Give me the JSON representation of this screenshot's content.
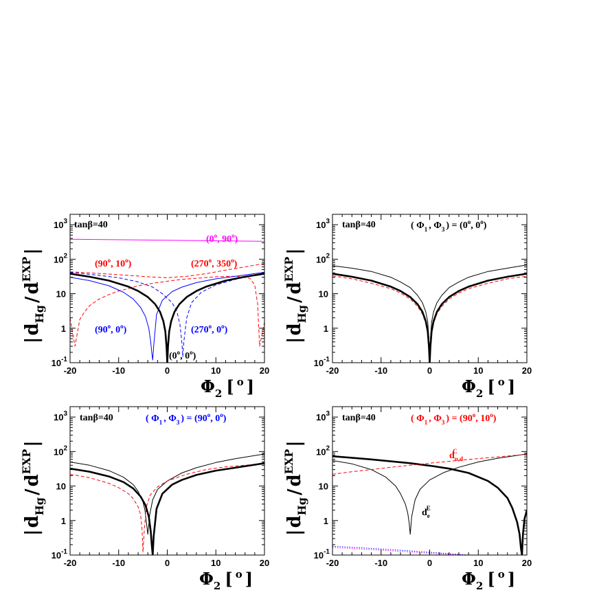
{
  "chart_data": [
    {
      "type": "line",
      "panel": "top-left",
      "xlabel": "Φ2 [ o ]",
      "ylabel": "|dHg / dEXP|",
      "xlim": [
        -20,
        20
      ],
      "ylim": [
        0.1,
        2000
      ],
      "yscale": "log",
      "xticks": [
        "-20",
        "-10",
        "0",
        "10",
        "20"
      ],
      "yticks": [
        "10 -1",
        "1",
        "10",
        "10 2",
        "10 3"
      ],
      "annotations": [
        "tanβ=40"
      ],
      "series": [
        {
          "name": "(0o, 90o)",
          "color": "#ff00ff",
          "dash": "solid",
          "width": 1,
          "x": [
            -20,
            20
          ],
          "y": [
            380,
            330
          ]
        },
        {
          "name": "(90o, 10o)",
          "color": "#ff0000",
          "dash": "dash",
          "width": 1,
          "x": [
            -20,
            -19,
            -18,
            -17,
            -16,
            -14,
            -12,
            -10,
            -8,
            -6,
            -4,
            -2,
            0,
            3,
            6,
            10,
            14,
            17,
            18,
            18.6,
            19,
            20
          ],
          "y": [
            2,
            0.3,
            1.8,
            3,
            4.5,
            7,
            9.5,
            12,
            14,
            17,
            19,
            21,
            23,
            26,
            28,
            31,
            32,
            28,
            18,
            5,
            0.3,
            1.5
          ]
        },
        {
          "name": "(270o, 350o)",
          "color": "#ff0000",
          "dash": "dash",
          "width": 1,
          "x": [
            -20,
            -16,
            -12,
            -8,
            -4,
            0,
            4,
            8,
            12,
            16,
            20
          ],
          "y": [
            43,
            40,
            37,
            34,
            31,
            29,
            32,
            38,
            48,
            60,
            75
          ]
        },
        {
          "name": "(90o, 0o)",
          "color": "#0000ff",
          "dash": "solid",
          "width": 1,
          "x": [
            -20,
            -16,
            -12,
            -9,
            -7,
            -5.5,
            -4.5,
            -3.8,
            -3.4,
            -3.2,
            -3,
            -2.8,
            -2.2,
            -1,
            1,
            3,
            6,
            10,
            14,
            20
          ],
          "y": [
            30,
            24,
            17,
            11,
            7,
            4,
            2.2,
            1,
            0.4,
            0.2,
            0.12,
            0.3,
            2.5,
            6.5,
            11.5,
            15.5,
            21,
            27,
            32,
            42
          ]
        },
        {
          "name": "(270o, 0o)",
          "color": "#0000ff",
          "dash": "dash",
          "width": 1,
          "x": [
            -20,
            -14,
            -10,
            -6,
            -3,
            -1,
            1,
            2,
            2.6,
            3,
            3.2,
            3.4,
            4,
            5,
            7,
            10,
            14,
            20
          ],
          "y": [
            42,
            34,
            29,
            22,
            15.5,
            10,
            5.5,
            3,
            1.3,
            0.4,
            0.15,
            0.4,
            2,
            5.5,
            11,
            18,
            26,
            40
          ]
        },
        {
          "name": "(0o, 0o)",
          "color": "#000000",
          "dash": "solid",
          "width": 2.6,
          "x": [
            -20,
            -16,
            -12,
            -8,
            -6,
            -4,
            -2.5,
            -1.5,
            -0.8,
            -0.4,
            -0.15,
            0,
            0.15,
            0.4,
            0.8,
            1.5,
            2.5,
            4,
            6,
            8,
            12,
            16,
            20
          ],
          "y": [
            38,
            31,
            24,
            16,
            12,
            8,
            5,
            3,
            1.6,
            0.8,
            0.3,
            0.1,
            0.3,
            0.8,
            1.6,
            3,
            5,
            8,
            12,
            16,
            24,
            31,
            38
          ]
        }
      ],
      "labels": [
        {
          "text": "(0o, 90o)",
          "color": "#ff00ff"
        },
        {
          "text": "(90o, 10o)",
          "color": "#ff0000"
        },
        {
          "text": "(270o, 350o)",
          "color": "#ff0000"
        },
        {
          "text": "(90o, 0o)",
          "color": "#0000ff"
        },
        {
          "text": "(270o, 0o)",
          "color": "#0000ff"
        },
        {
          "text": "(0o, 0o)",
          "color": "#000000"
        }
      ]
    },
    {
      "type": "line",
      "panel": "top-right",
      "xlabel": "Φ2 [ o ]",
      "ylabel": "|dHg / dEXP|",
      "xlim": [
        -20,
        20
      ],
      "ylim": [
        0.1,
        2000
      ],
      "yscale": "log",
      "xticks": [
        "-20",
        "-10",
        "0",
        "10",
        "20"
      ],
      "yticks": [
        "10 -1",
        "1",
        "10",
        "10 2",
        "10 3"
      ],
      "annotations": [
        "tanβ=40",
        "( Φ1 , Φ3 ) = (0o, 0o)"
      ],
      "series": [
        {
          "name": "thin",
          "color": "#000000",
          "dash": "solid",
          "width": 1,
          "x": [
            -20,
            -16,
            -12,
            -8,
            -6,
            -4,
            -2.5,
            -1.5,
            -0.8,
            -0.4,
            -0.15,
            0,
            0.15,
            0.4,
            0.8,
            1.5,
            2.5,
            4,
            6,
            8,
            12,
            16,
            20
          ],
          "y": [
            65,
            55,
            44,
            30,
            22,
            15,
            9,
            5.5,
            3,
            1.5,
            0.5,
            0.1,
            0.5,
            1.5,
            3,
            5.5,
            9,
            15,
            22,
            30,
            44,
            55,
            68
          ]
        },
        {
          "name": "dashed",
          "color": "#ff0000",
          "dash": "dash",
          "width": 1,
          "x": [
            -20,
            -16,
            -12,
            -8,
            -6,
            -4,
            -2.5,
            -1.5,
            -0.8,
            -0.4,
            -0.15,
            0,
            0.15,
            0.4,
            0.8,
            1.5,
            2.5,
            4,
            6,
            8,
            12,
            16,
            20
          ],
          "y": [
            33,
            27,
            20,
            14,
            10.5,
            7,
            4.3,
            2.6,
            1.4,
            0.7,
            0.25,
            0.1,
            0.25,
            0.7,
            1.4,
            2.6,
            4.3,
            7,
            10.5,
            14,
            20,
            27,
            32
          ]
        },
        {
          "name": "thick",
          "color": "#000000",
          "dash": "solid",
          "width": 2.6,
          "x": [
            -20,
            -16,
            -12,
            -8,
            -6,
            -4,
            -2.5,
            -1.5,
            -0.8,
            -0.4,
            -0.15,
            0,
            0.15,
            0.4,
            0.8,
            1.5,
            2.5,
            4,
            6,
            8,
            12,
            16,
            20
          ],
          "y": [
            38,
            31,
            24,
            16,
            12,
            8,
            5,
            3,
            1.6,
            0.8,
            0.3,
            0.1,
            0.3,
            0.8,
            1.6,
            3,
            5,
            8,
            12,
            16,
            24,
            31,
            38
          ]
        }
      ],
      "labels": []
    },
    {
      "type": "line",
      "panel": "bottom-left",
      "xlabel": "Φ2 [ o ]",
      "ylabel": "|dHg / dEXP|",
      "xlim": [
        -20,
        20
      ],
      "ylim": [
        0.1,
        2000
      ],
      "yscale": "log",
      "xticks": [
        "-20",
        "-10",
        "0",
        "10",
        "20"
      ],
      "yticks": [
        "10 -1",
        "1",
        "10",
        "10 2",
        "10 3"
      ],
      "annotations": [
        "tanβ=40",
        "( Φ1 , Φ3 ) = (90o, 0o)"
      ],
      "series": [
        {
          "name": "thin",
          "color": "#000000",
          "dash": "solid",
          "width": 1,
          "x": [
            -20,
            -16,
            -12,
            -9,
            -7,
            -6,
            -5,
            -4.6,
            -4.3,
            -4,
            -3.6,
            -3,
            -2,
            0,
            3,
            6,
            10,
            14,
            20
          ],
          "y": [
            50,
            40,
            28,
            18,
            11,
            7,
            3.5,
            2,
            0.9,
            0.4,
            1.5,
            4,
            8,
            14,
            24,
            34,
            48,
            62,
            85
          ]
        },
        {
          "name": "dashed",
          "color": "#ff0000",
          "dash": "dash",
          "width": 1,
          "x": [
            -20,
            -16,
            -12,
            -10,
            -8,
            -7,
            -6,
            -5.5,
            -5.2,
            -5,
            -4.7,
            -4.3,
            -3.5,
            -2,
            0,
            4,
            8,
            12,
            16,
            20
          ],
          "y": [
            22,
            17.5,
            12,
            9,
            6,
            4.3,
            2.5,
            1.5,
            0.6,
            0.12,
            0.6,
            2.5,
            5.5,
            9.5,
            14,
            22,
            30,
            36,
            40,
            44
          ]
        },
        {
          "name": "thick",
          "color": "#000000",
          "dash": "solid",
          "width": 2.6,
          "x": [
            -20,
            -16,
            -12,
            -9,
            -7,
            -5.5,
            -4.5,
            -3.8,
            -3.4,
            -3.2,
            -3,
            -2.8,
            -2.2,
            -1,
            1,
            3,
            6,
            10,
            14,
            20
          ],
          "y": [
            32,
            26,
            19,
            13,
            8.5,
            5,
            2.8,
            1.3,
            0.5,
            0.2,
            0.1,
            0.35,
            2.2,
            6,
            11,
            15,
            21,
            28,
            34,
            46
          ]
        }
      ],
      "labels": []
    },
    {
      "type": "line",
      "panel": "bottom-right",
      "xlabel": "Φ2 [ o ]",
      "ylabel": "|dHg / dEXP|",
      "xlim": [
        -20,
        20
      ],
      "ylim": [
        0.1,
        2000
      ],
      "yscale": "log",
      "xticks": [
        "-20",
        "-10",
        "0",
        "10",
        "20"
      ],
      "yticks": [
        "10 -1",
        "1",
        "10",
        "10 2",
        "10 3"
      ],
      "annotations": [
        "tanβ=40",
        "( Φ1 , Φ3 ) = (90o, 10o)"
      ],
      "series": [
        {
          "name": "thick",
          "color": "#000000",
          "dash": "solid",
          "width": 2.6,
          "x": [
            -20,
            -16,
            -12,
            -8,
            -4,
            0,
            4,
            8,
            12,
            14,
            16,
            17,
            18,
            18.5,
            18.8,
            19,
            19.2,
            19.5,
            20
          ],
          "y": [
            73,
            66,
            59,
            52,
            46,
            39,
            32,
            24,
            14,
            9,
            4.5,
            2.3,
            0.9,
            0.4,
            0.15,
            0.1,
            0.4,
            1.1,
            2
          ]
        },
        {
          "name": "d_e^E",
          "color": "#000000",
          "dash": "solid",
          "width": 1,
          "x": [
            -20,
            -16,
            -12,
            -9,
            -7,
            -6,
            -5,
            -4.5,
            -4.2,
            -4,
            -3.7,
            -3,
            -2,
            0,
            3,
            6,
            10,
            14,
            20
          ],
          "y": [
            55,
            44,
            30,
            18,
            10,
            6,
            3,
            1.6,
            0.8,
            0.4,
            1.3,
            4,
            8,
            15,
            25,
            35,
            50,
            64,
            85
          ]
        },
        {
          "name": "d_u,d^C",
          "color": "#ff0000",
          "dash": "dash",
          "width": 1,
          "x": [
            -20,
            -16,
            -12,
            -8,
            -4,
            0,
            4,
            8,
            12,
            16,
            20
          ],
          "y": [
            22,
            26,
            30,
            35,
            40,
            46,
            52,
            59,
            66,
            74,
            83
          ]
        },
        {
          "name": "dotted-blue",
          "color": "#0000ff",
          "dash": "dot",
          "width": 1,
          "x": [
            -20,
            -15,
            -10,
            -5,
            0,
            5,
            8
          ],
          "y": [
            0.18,
            0.165,
            0.15,
            0.135,
            0.12,
            0.107,
            0.1
          ]
        },
        {
          "name": "dotted-magenta",
          "color": "#ff00ff",
          "dash": "dot",
          "width": 1,
          "x": [
            -20,
            -15,
            -10,
            -5,
            0,
            5,
            7.5
          ],
          "y": [
            0.165,
            0.152,
            0.138,
            0.125,
            0.112,
            0.102,
            0.1
          ]
        }
      ],
      "labels": [
        {
          "text": "d u,d C",
          "color": "#ff0000"
        },
        {
          "text": "d e E",
          "color": "#000000"
        }
      ]
    }
  ],
  "text": {
    "tan": "tanβ=40",
    "phi_xlabel_main": "Φ",
    "phi_xlabel_sub": "2",
    "phi_xlabel_rest": "[",
    "phi_xlabel_deg": "o",
    "phi_xlabel_close": "]",
    "ylabel_bar": "|",
    "ylabel_d": "d",
    "ylabel_hg": "Hg",
    "ylabel_slash": "/",
    "ylabel_exp": "EXP",
    "tl_l1": "(0",
    "tl_l1b": "o",
    "tl_l1c": ", 90",
    "tl_l1d": "o",
    "tl_l1e": ")",
    "tl_l2": "(90",
    "tl_l2b": "o",
    "tl_l2c": ", 10",
    "tl_l2d": "o",
    "tl_l2e": ")",
    "tl_l3": "(270",
    "tl_l3b": "o",
    "tl_l3c": ", 350",
    "tl_l3d": "o",
    "tl_l3e": ")",
    "tl_l4": "(90",
    "tl_l4b": "o",
    "tl_l4c": ", 0",
    "tl_l4d": "o",
    "tl_l4e": ")",
    "tl_l5": "(270",
    "tl_l5b": "o",
    "tl_l5c": ", 0",
    "tl_l5d": "o",
    "tl_l5e": ")",
    "tl_l6": "(0",
    "tl_l6b": "o",
    "tl_l6c": ", 0",
    "tl_l6d": "o",
    "tl_l6e": ")",
    "tr_phase_a": "( Φ",
    "tr_phase_a1": "1",
    "tr_phase_b": ", Φ",
    "tr_phase_b1": "3",
    "tr_phase_c": ") = (0",
    "tr_phase_c1": "o",
    "tr_phase_d": ", 0",
    "tr_phase_d1": "o",
    "tr_phase_e": ")",
    "bl_phase_c": ") = (90",
    "bl_phase_d": ", 0",
    "br_phase_c": ") = (90",
    "br_phase_d": ", 10",
    "br_dc": "d",
    "br_dc_sub": "u,d",
    "br_dc_sup": "C",
    "br_de": "d",
    "br_de_sub": "e",
    "br_de_sup": "E"
  },
  "colors": {
    "black": "#000000",
    "red": "#ff0000",
    "blue": "#0000ff",
    "magenta": "#ff00ff"
  }
}
